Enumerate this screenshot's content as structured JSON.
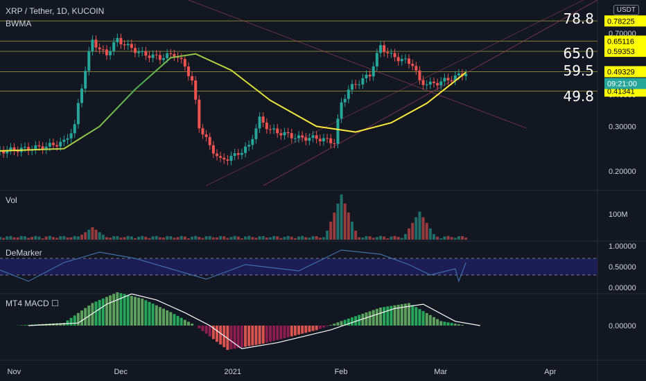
{
  "header": {
    "symbol_line": "XRP / Tether, 1D, KUCOIN",
    "indicator": "BWMA",
    "unit_button": "USDT"
  },
  "fib_labels": [
    {
      "text": "78.8",
      "price": 0.78225
    },
    {
      "text": "65.0",
      "price": 0.65116
    },
    {
      "text": "59.5",
      "price": 0.59353
    },
    {
      "text": "49.8",
      "price": 0.49329
    }
  ],
  "price_tags": [
    {
      "text": "0.78225",
      "price": 0.78225,
      "color": "#ffff00"
    },
    {
      "text": "0.65116",
      "price": 0.65116,
      "color": "#ffff00"
    },
    {
      "text": "0.59353",
      "price": 0.59353,
      "color": "#ffff00"
    },
    {
      "text": "0.49329",
      "price": 0.49329,
      "color": "#ffff00"
    },
    {
      "text": "0.41341",
      "price": 0.41341,
      "color": "#ffff00"
    }
  ],
  "current_tag": {
    "text": "09:21:00",
    "color": "#26a69a"
  },
  "panes": {
    "volume": {
      "title": "Vol",
      "ticks": [
        "100M"
      ]
    },
    "demarker": {
      "title": "DeMarker",
      "ticks": [
        "1.00000",
        "0.50000",
        "0.00000"
      ],
      "levels": [
        0.7,
        0.3
      ]
    },
    "macd": {
      "title": "MT4 MACD ☐",
      "ticks": [
        "0.00000"
      ]
    }
  },
  "x_axis": {
    "labels": [
      "Nov",
      "Dec",
      "2021",
      "Feb",
      "Mar",
      "Apr"
    ]
  },
  "chart_data": {
    "type": "candlestick",
    "title": "XRP / Tether, 1D, KUCOIN",
    "y_ticks": [
      0.7,
      0.6,
      0.5,
      0.4,
      0.3,
      0.2
    ],
    "y_scale": "log",
    "ylim": [
      0.175,
      0.9
    ],
    "x_start": "2020-10-28",
    "x_end": "2021-04-14",
    "close_path": [
      [
        "2020-10-28",
        0.24
      ],
      [
        "2020-11-05",
        0.245
      ],
      [
        "2020-11-10",
        0.25
      ],
      [
        "2020-11-15",
        0.26
      ],
      [
        "2020-11-18",
        0.3
      ],
      [
        "2020-11-21",
        0.5
      ],
      [
        "2020-11-23",
        0.66
      ],
      [
        "2020-11-25",
        0.6
      ],
      [
        "2020-11-27",
        0.58
      ],
      [
        "2020-11-30",
        0.66
      ],
      [
        "2020-12-03",
        0.62
      ],
      [
        "2020-12-07",
        0.58
      ],
      [
        "2020-12-12",
        0.56
      ],
      [
        "2020-12-16",
        0.58
      ],
      [
        "2020-12-19",
        0.52
      ],
      [
        "2020-12-21",
        0.45
      ],
      [
        "2020-12-23",
        0.3
      ],
      [
        "2020-12-26",
        0.25
      ],
      [
        "2020-12-29",
        0.22
      ],
      [
        "2021-01-02",
        0.23
      ],
      [
        "2021-01-06",
        0.25
      ],
      [
        "2021-01-09",
        0.32
      ],
      [
        "2021-01-12",
        0.29
      ],
      [
        "2021-01-16",
        0.28
      ],
      [
        "2021-01-20",
        0.27
      ],
      [
        "2021-01-25",
        0.27
      ],
      [
        "2021-01-30",
        0.26
      ],
      [
        "2021-02-01",
        0.37
      ],
      [
        "2021-02-03",
        0.42
      ],
      [
        "2021-02-06",
        0.45
      ],
      [
        "2021-02-09",
        0.48
      ],
      [
        "2021-02-12",
        0.62
      ],
      [
        "2021-02-15",
        0.57
      ],
      [
        "2021-02-18",
        0.55
      ],
      [
        "2021-02-21",
        0.53
      ],
      [
        "2021-02-23",
        0.45
      ],
      [
        "2021-02-26",
        0.44
      ],
      [
        "2021-03-01",
        0.45
      ],
      [
        "2021-03-05",
        0.47
      ],
      [
        "2021-03-08",
        0.49
      ]
    ],
    "bwma": [
      [
        "2020-10-28",
        0.24
      ],
      [
        "2020-11-15",
        0.245
      ],
      [
        "2020-11-25",
        0.3
      ],
      [
        "2020-12-05",
        0.42
      ],
      [
        "2020-12-15",
        0.56
      ],
      [
        "2020-12-22",
        0.58
      ],
      [
        "2021-01-01",
        0.5
      ],
      [
        "2021-01-12",
        0.38
      ],
      [
        "2021-01-25",
        0.3
      ],
      [
        "2021-02-05",
        0.285
      ],
      [
        "2021-02-15",
        0.31
      ],
      [
        "2021-02-25",
        0.37
      ],
      [
        "2021-03-08",
        0.49
      ]
    ],
    "volume_peaks": [
      [
        "2020-11-23",
        40
      ],
      [
        "2021-02-01",
        145
      ],
      [
        "2021-02-23",
        90
      ]
    ],
    "demarker_path": [
      [
        "2020-10-28",
        0.42
      ],
      [
        "2020-11-05",
        0.15
      ],
      [
        "2020-11-15",
        0.6
      ],
      [
        "2020-11-25",
        0.85
      ],
      [
        "2020-12-05",
        0.7
      ],
      [
        "2020-12-15",
        0.45
      ],
      [
        "2020-12-25",
        0.2
      ],
      [
        "2021-01-05",
        0.55
      ],
      [
        "2021-01-20",
        0.4
      ],
      [
        "2021-02-01",
        0.9
      ],
      [
        "2021-02-12",
        0.8
      ],
      [
        "2021-02-20",
        0.55
      ],
      [
        "2021-02-26",
        0.3
      ],
      [
        "2021-03-05",
        0.45
      ],
      [
        "2021-03-06",
        0.15
      ],
      [
        "2021-03-08",
        0.6
      ]
    ],
    "macd_hist": [
      [
        "2020-11-01",
        0.0
      ],
      [
        "2020-11-15",
        0.03
      ],
      [
        "2020-11-23",
        0.25
      ],
      [
        "2020-11-30",
        0.37
      ],
      [
        "2020-12-07",
        0.3
      ],
      [
        "2020-12-15",
        0.15
      ],
      [
        "2020-12-22",
        0.0
      ],
      [
        "2020-12-31",
        -0.27
      ],
      [
        "2021-01-10",
        -0.2
      ],
      [
        "2021-01-25",
        -0.05
      ],
      [
        "2021-02-01",
        0.05
      ],
      [
        "2021-02-12",
        0.2
      ],
      [
        "2021-02-20",
        0.25
      ],
      [
        "2021-03-01",
        0.05
      ],
      [
        "2021-03-08",
        0.0
      ]
    ]
  }
}
